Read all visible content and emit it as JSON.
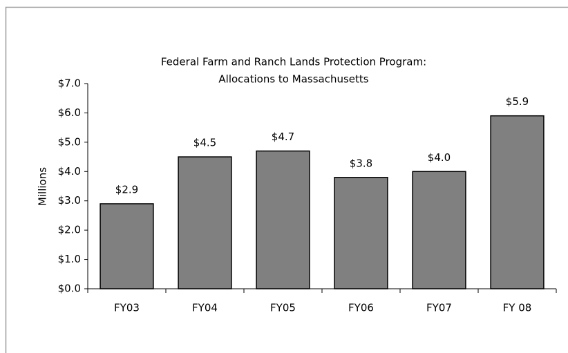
{
  "chart_data": {
    "type": "bar",
    "title": [
      "Federal Farm and Ranch Lands Protection Program:",
      "Allocations to Massachusetts"
    ],
    "y_label": "Millions",
    "categories": [
      "FY03",
      "FY04",
      "FY05",
      "FY06",
      "FY07",
      "FY 08"
    ],
    "values": [
      2.9,
      4.5,
      4.7,
      3.8,
      4.0,
      5.9
    ],
    "value_labels": [
      "$2.9",
      "$4.5",
      "$4.7",
      "$3.8",
      "$4.0",
      "$5.9"
    ],
    "color": "#808080",
    "ylim": [
      0,
      7
    ],
    "yticks": [
      {
        "value": 0,
        "label": "$0.0"
      },
      {
        "value": 1,
        "label": "$1.0"
      },
      {
        "value": 2,
        "label": "$2.0"
      },
      {
        "value": 3,
        "label": "$3.0"
      },
      {
        "value": 4,
        "label": "$4.0"
      },
      {
        "value": 5,
        "label": "$5.0"
      },
      {
        "value": 6,
        "label": "$6.0"
      },
      {
        "value": 7,
        "label": "$7.0"
      }
    ]
  }
}
